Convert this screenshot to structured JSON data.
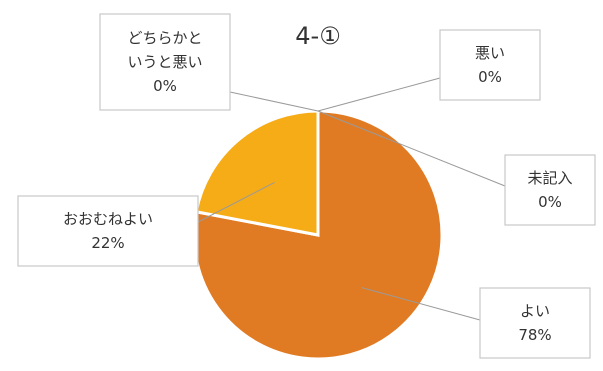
{
  "chart_data": {
    "type": "pie",
    "title": "4-①",
    "slices": [
      {
        "label": "よい",
        "value": 78,
        "value_label": "78%",
        "color": "#e07b24"
      },
      {
        "label": "おおむねよい",
        "value": 22,
        "value_label": "22%",
        "color": "#f5ac17"
      },
      {
        "label": "どちらかというと悪い",
        "label_lines": [
          "どちらかと",
          "いうと悪い"
        ],
        "value": 0,
        "value_label": "0%",
        "color": "#c8c8c8"
      },
      {
        "label": "悪い",
        "value": 0,
        "value_label": "0%",
        "color": "#8c8c8c"
      },
      {
        "label": "未記入",
        "value": 0,
        "value_label": "0%",
        "color": "#5a5a5a"
      }
    ],
    "start_angle": "12 o'clock",
    "direction": "clockwise",
    "legend": "none"
  }
}
